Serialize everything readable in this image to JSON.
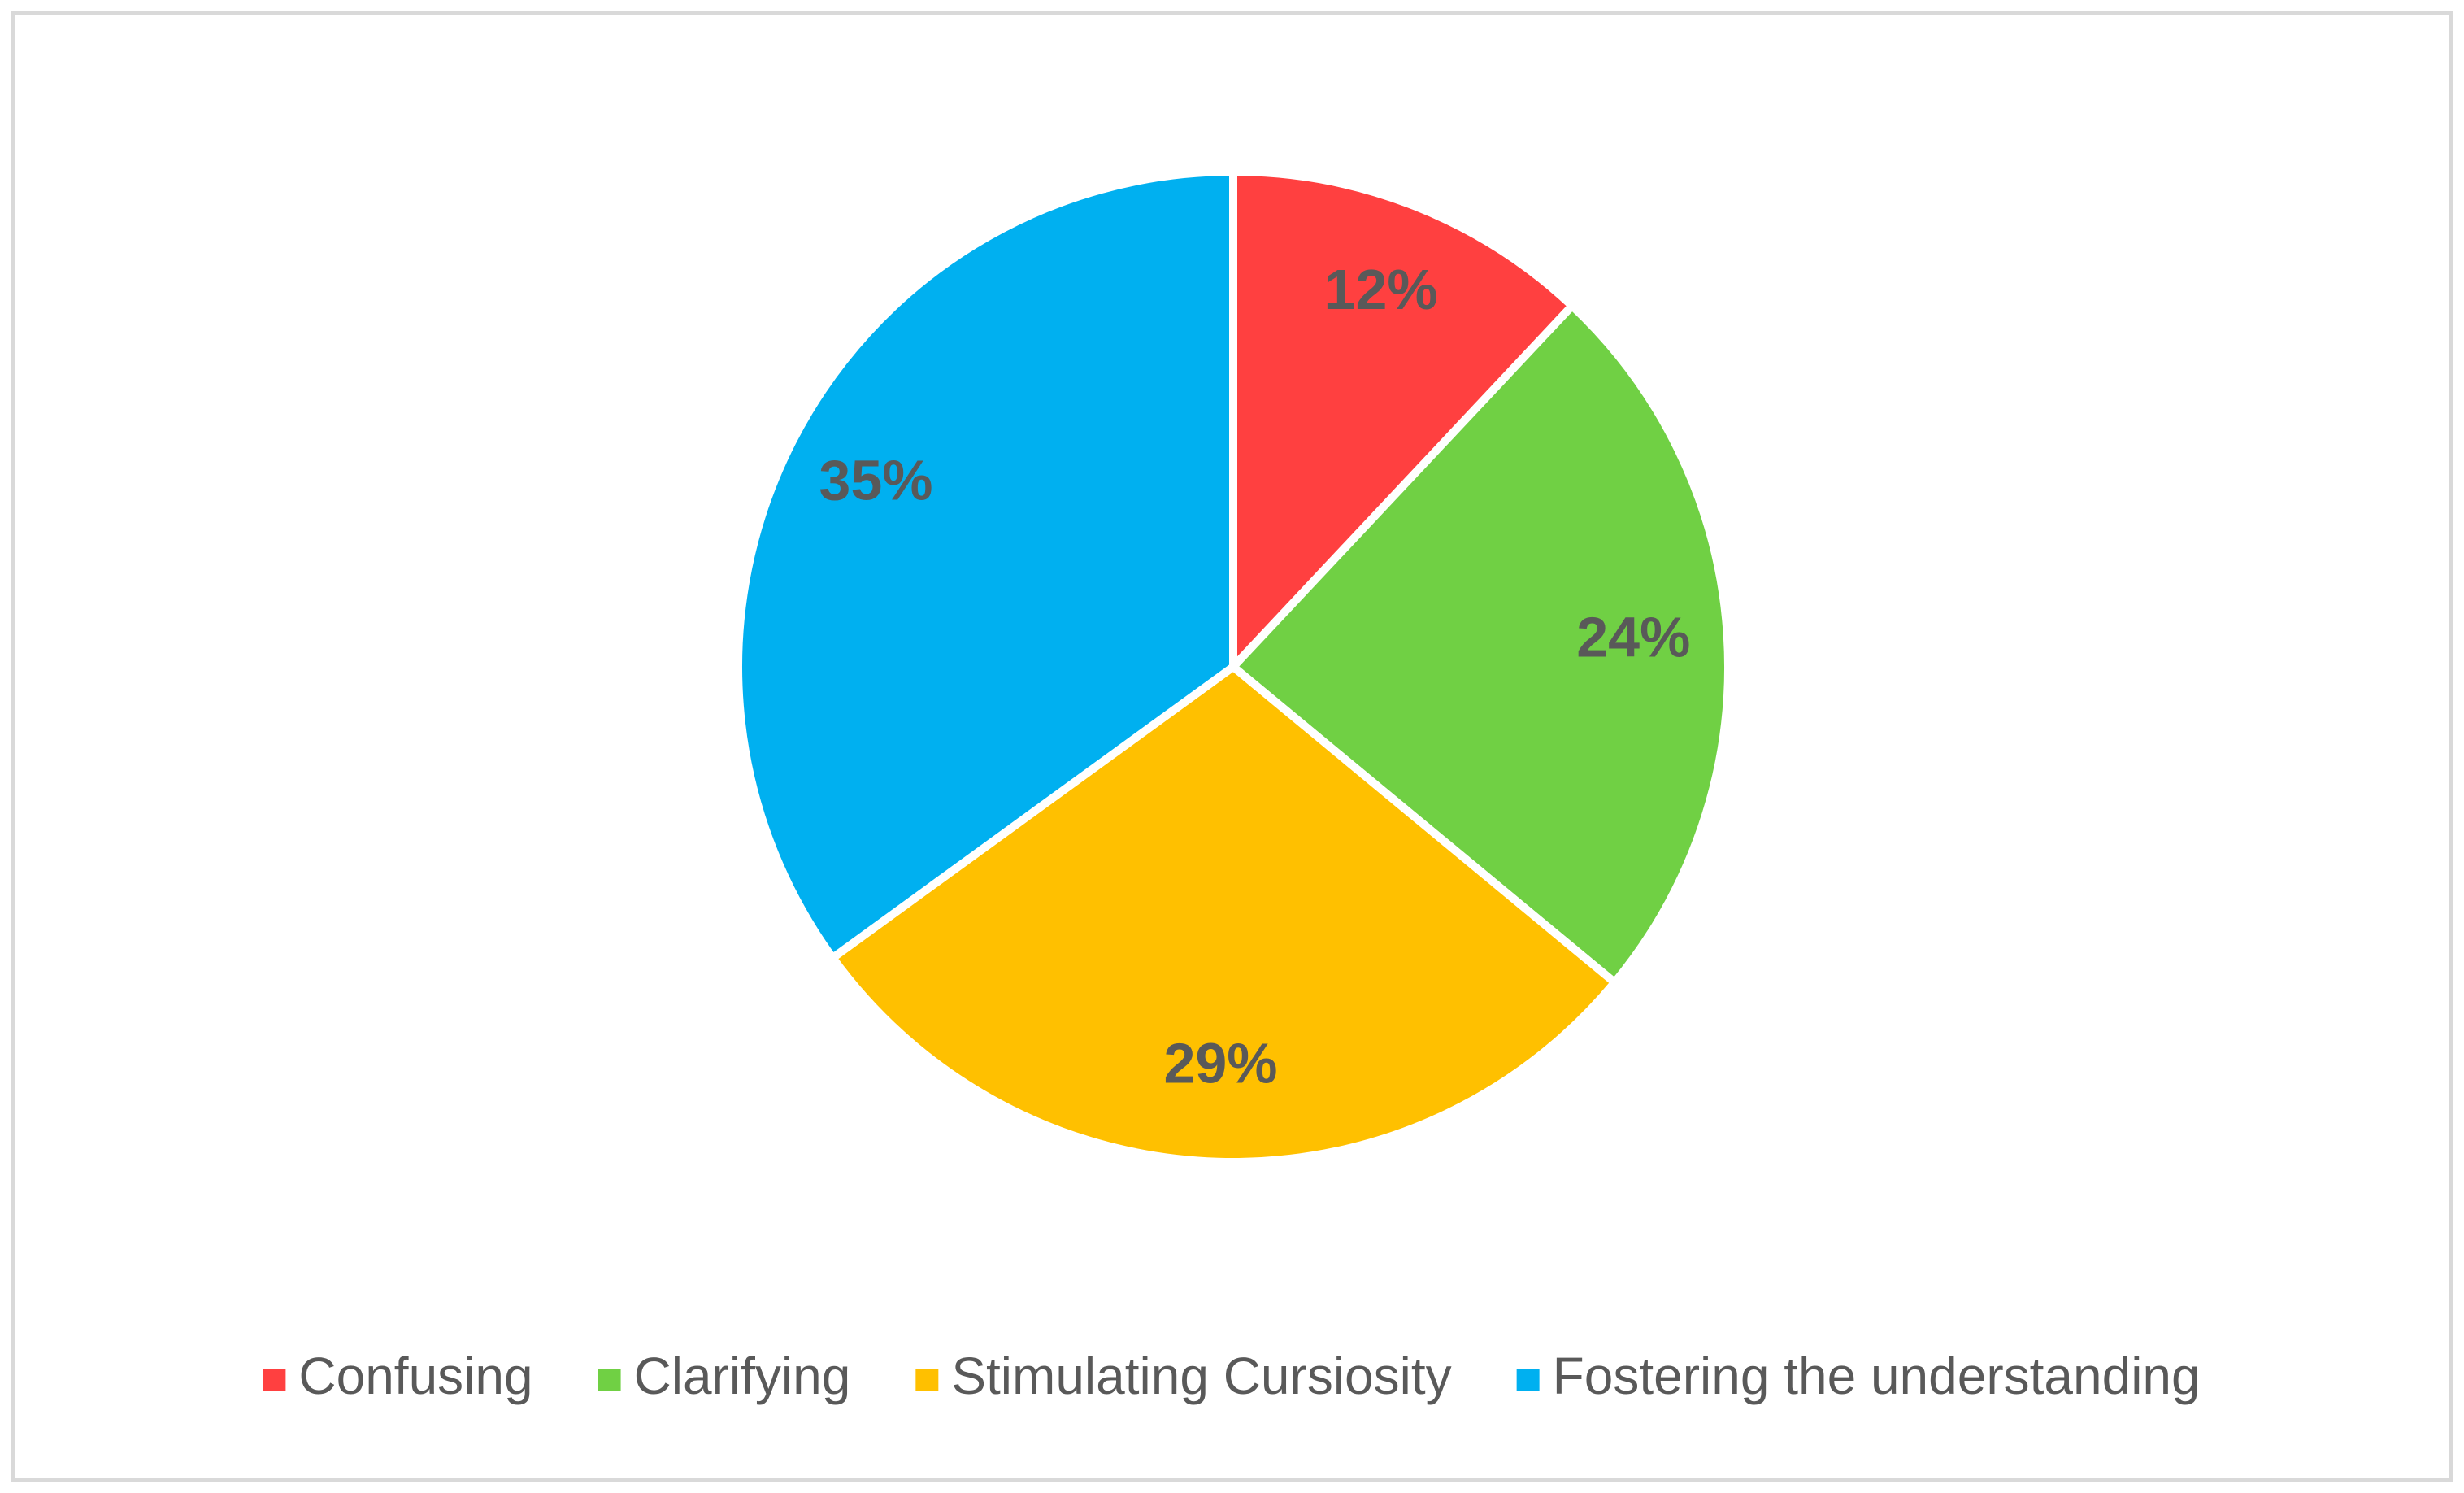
{
  "chart_data": {
    "type": "pie",
    "categories": [
      "Confusing",
      "Clarifying",
      "Stimulating Cursiosity",
      "Fostering the understanding"
    ],
    "values": [
      12,
      24,
      29,
      35
    ],
    "value_labels": [
      "12%",
      "24%",
      "29%",
      "35%"
    ],
    "colors": [
      "#ff4040",
      "#70d044",
      "#ffc000",
      "#00b0f0"
    ],
    "legend": "bottom"
  }
}
